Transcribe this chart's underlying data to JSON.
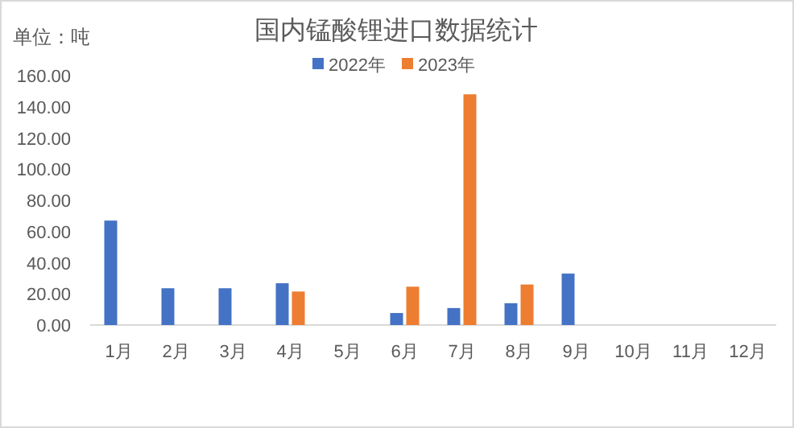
{
  "chart_data": {
    "type": "bar",
    "title": "国内锰酸锂进口数据统计",
    "annotations": [
      "单位：吨"
    ],
    "categories": [
      "1月",
      "2月",
      "3月",
      "4月",
      "5月",
      "6月",
      "7月",
      "8月",
      "9月",
      "10月",
      "11月",
      "12月"
    ],
    "series": [
      {
        "name": "2022年",
        "color": "#4472c4",
        "values": [
          67,
          23.6,
          23.6,
          26.8,
          null,
          7.7,
          10.9,
          14,
          33,
          null,
          null,
          null
        ]
      },
      {
        "name": "2023年",
        "color": "#ed7d31",
        "values": [
          null,
          null,
          null,
          21.5,
          null,
          24.6,
          148,
          26,
          null,
          null,
          null,
          null
        ]
      }
    ],
    "ylim": [
      0,
      160
    ],
    "yticks": [
      {
        "value": 0,
        "label": "0.00"
      },
      {
        "value": 20,
        "label": "20.00"
      },
      {
        "value": 40,
        "label": "40.00"
      },
      {
        "value": 60,
        "label": "60.00"
      },
      {
        "value": 80,
        "label": "80.00"
      },
      {
        "value": 100,
        "label": "100.00"
      },
      {
        "value": 120,
        "label": "120.00"
      },
      {
        "value": 140,
        "label": "140.00"
      },
      {
        "value": 160,
        "label": "160.00"
      }
    ],
    "grid": false,
    "legend": "top"
  }
}
